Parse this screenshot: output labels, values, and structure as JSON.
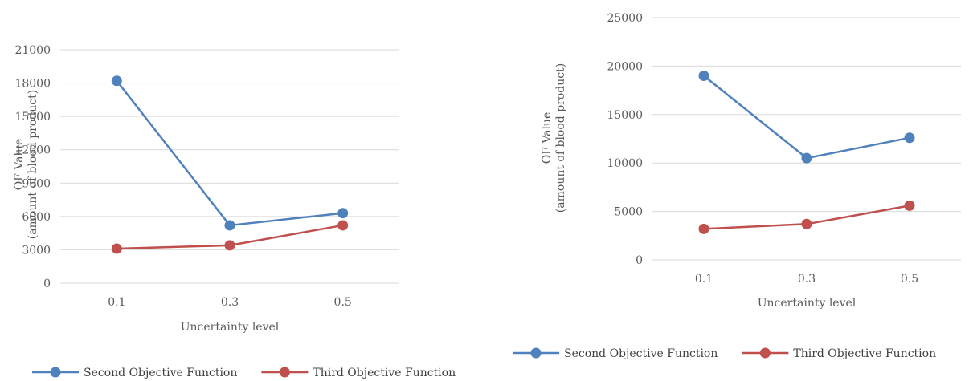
{
  "chart_data": [
    {
      "type": "line",
      "categories": [
        "0.1",
        "0.3",
        "0.5"
      ],
      "xlabel": "Uncertainty level",
      "ylabel_lines": [
        "OF Value",
        "(amount of blood product)"
      ],
      "ylim": [
        0,
        21000
      ],
      "yticks": [
        0,
        3000,
        6000,
        9000,
        12000,
        15000,
        18000,
        21000
      ],
      "grid": true,
      "legend_position": "bottom",
      "series": [
        {
          "name": "Second Objective Function",
          "color": "#4F81BD",
          "values": [
            18200,
            5200,
            6300
          ]
        },
        {
          "name": "Third Objective Function",
          "color": "#C0504D",
          "values": [
            3100,
            3400,
            5200
          ]
        }
      ]
    },
    {
      "type": "line",
      "categories": [
        "0.1",
        "0.3",
        "0.5"
      ],
      "xlabel": "Uncertainty level",
      "ylabel_lines": [
        "OF Value",
        "(amount of blood product)"
      ],
      "ylim": [
        0,
        25000
      ],
      "yticks": [
        0,
        5000,
        10000,
        15000,
        20000,
        25000
      ],
      "grid": true,
      "legend_position": "bottom",
      "series": [
        {
          "name": "Second Objective Function",
          "color": "#4F81BD",
          "values": [
            19000,
            10500,
            12600
          ]
        },
        {
          "name": "Third Objective Function",
          "color": "#C0504D",
          "values": [
            3200,
            3700,
            5600
          ]
        }
      ]
    }
  ]
}
